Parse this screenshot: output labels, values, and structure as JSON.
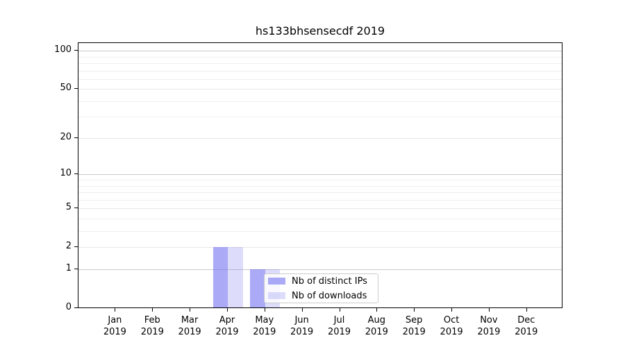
{
  "title": "hs133bhsensecdf 2019",
  "chart_data": {
    "type": "bar",
    "title": "hs133bhsensecdf 2019",
    "x_months": [
      "Jan",
      "Feb",
      "Mar",
      "Apr",
      "May",
      "Jun",
      "Jul",
      "Aug",
      "Sep",
      "Oct",
      "Nov",
      "Dec"
    ],
    "x_year": "2019",
    "series": [
      {
        "name": "Nb of distinct IPs",
        "color": "rgba(120,120,240,0.63)",
        "values": [
          0,
          0,
          0,
          2,
          1,
          0,
          0,
          0,
          0,
          0,
          0,
          0
        ]
      },
      {
        "name": "Nb of downloads",
        "color": "rgba(120,120,240,0.25)",
        "values": [
          0,
          0,
          0,
          2,
          1,
          0,
          0,
          0,
          0,
          0,
          0,
          0
        ]
      }
    ],
    "yscale": "log1p",
    "ylim": [
      0,
      115
    ],
    "yticks": [
      {
        "value": 0,
        "label": "0"
      },
      {
        "value": 1,
        "label": "1"
      },
      {
        "value": 2,
        "label": "2"
      },
      {
        "value": 5,
        "label": "5"
      },
      {
        "value": 10,
        "label": "10"
      },
      {
        "value": 20,
        "label": "20"
      },
      {
        "value": 50,
        "label": "50"
      },
      {
        "value": 100,
        "label": "100"
      }
    ],
    "power_of_ten_gridlines": [
      1,
      10,
      100
    ],
    "minor_gridlines": [
      3,
      4,
      6,
      7,
      8,
      9,
      30,
      40,
      60,
      70,
      80,
      90
    ],
    "grid": "on",
    "legend": {
      "position": "lower center",
      "entries": [
        "Nb of distinct IPs",
        "Nb of downloads"
      ]
    }
  }
}
